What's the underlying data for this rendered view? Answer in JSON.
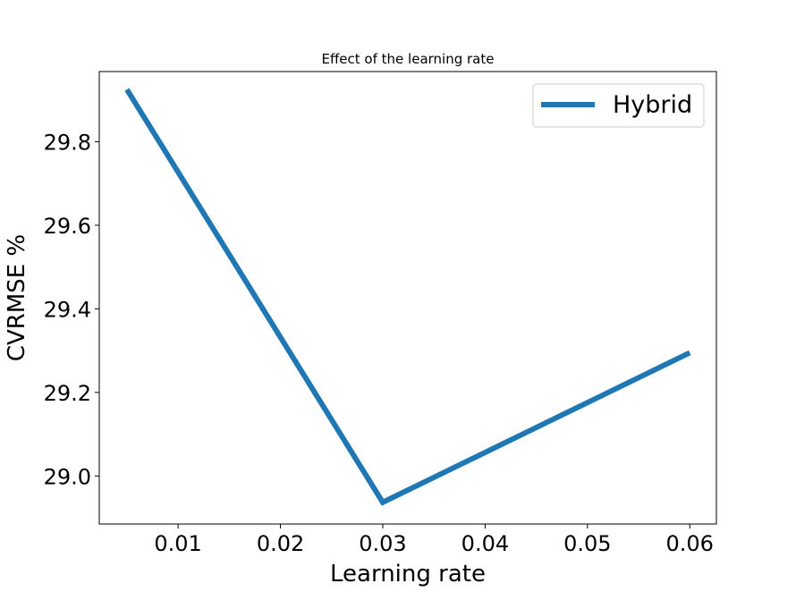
{
  "chart_data": {
    "type": "line",
    "title": "Effect of the learning rate",
    "xlabel": "Learning rate",
    "ylabel": "CVRMSE %",
    "xlim": [
      0.0023,
      0.0626
    ],
    "ylim": [
      28.885,
      29.968
    ],
    "x_ticks": [
      0.01,
      0.02,
      0.03,
      0.04,
      0.05,
      0.06
    ],
    "x_tick_labels": [
      "0.01",
      "0.02",
      "0.03",
      "0.04",
      "0.05",
      "0.06"
    ],
    "y_ticks": [
      29.0,
      29.2,
      29.4,
      29.6,
      29.8
    ],
    "y_tick_labels": [
      "29.0",
      "29.2",
      "29.4",
      "29.6",
      "29.8"
    ],
    "grid": false,
    "legend_position": "upper right",
    "series": [
      {
        "name": "Hybrid",
        "color": "#1f77b4",
        "x": [
          0.005,
          0.03,
          0.06
        ],
        "y": [
          29.925,
          28.937,
          29.295
        ]
      }
    ]
  }
}
